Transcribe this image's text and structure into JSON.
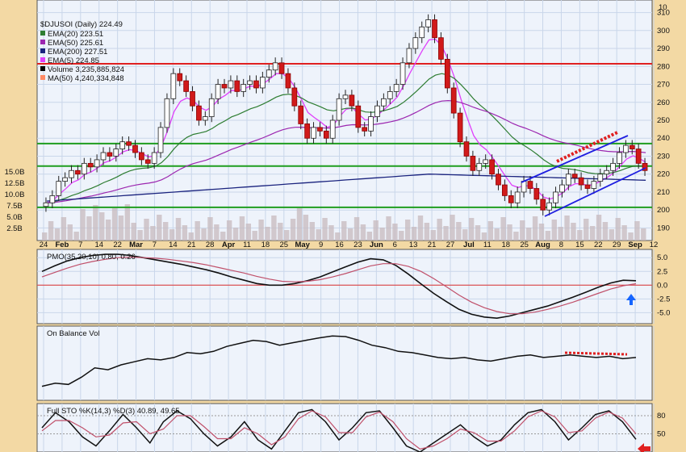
{
  "chart_data": [
    {
      "type": "candlestick",
      "symbol_label": "$DJUSOI (Daily) 224.49",
      "legend": [
        {
          "label": "EMA(20) 223.51",
          "color": "#2e7d32"
        },
        {
          "label": "EMA(50) 225.61",
          "color": "#9c27b0"
        },
        {
          "label": "EMA(200) 227.51",
          "color": "#1a237e"
        },
        {
          "label": "EMA(5) 224.85",
          "color": "#e040fb"
        },
        {
          "label": "Volume 3,235,885,824",
          "color": "#000000"
        },
        {
          "label": "MA(50) 4,240,334,848",
          "color": "#ff8a65"
        }
      ],
      "x_labels": [
        "24",
        "Feb",
        "7",
        "14",
        "22",
        "Mar",
        "7",
        "14",
        "21",
        "28",
        "Apr",
        "11",
        "18",
        "25",
        "May",
        "9",
        "16",
        "23",
        "Jun",
        "6",
        "13",
        "21",
        "27",
        "Jul",
        "11",
        "18",
        "25",
        "Aug",
        "8",
        "15",
        "22",
        "29",
        "Sep",
        "12"
      ],
      "y_ticks": [
        190,
        200,
        210,
        220,
        230,
        240,
        250,
        260,
        270,
        280,
        290,
        300,
        310
      ],
      "y_top_label": "10",
      "ylim": [
        183,
        317
      ],
      "volume_ticks": [
        "2.5B",
        "5.0B",
        "7.5B",
        "10.0B",
        "12.5B",
        "15.0B"
      ],
      "horizontal_levels": [
        {
          "value": 281.5,
          "color": "#e02020"
        },
        {
          "value": 237,
          "color": "#1f9d1f"
        },
        {
          "value": 224.5,
          "color": "#1f9d1f"
        },
        {
          "value": 201.5,
          "color": "#1f9d1f"
        }
      ],
      "close_series": [
        204,
        208,
        216,
        218,
        222,
        220,
        226,
        224,
        228,
        232,
        230,
        234,
        238,
        236,
        232,
        228,
        226,
        232,
        246,
        262,
        276,
        272,
        266,
        258,
        250,
        252,
        262,
        270,
        268,
        272,
        266,
        270,
        272,
        268,
        274,
        278,
        282,
        276,
        268,
        258,
        248,
        240,
        246,
        244,
        240,
        250,
        262,
        264,
        258,
        246,
        244,
        252,
        258,
        262,
        266,
        270,
        282,
        290,
        296,
        302,
        306,
        296,
        284,
        268,
        254,
        238,
        230,
        222,
        226,
        228,
        220,
        214,
        208,
        204,
        210,
        216,
        212,
        206,
        200,
        204,
        210,
        214,
        220,
        218,
        214,
        212,
        216,
        220,
        222,
        226,
        232,
        236,
        234,
        226,
        222
      ]
    },
    {
      "type": "line",
      "title": "PMO(35,20,10) 0.80, 0.26",
      "y_ticks": [
        "5.0",
        "2.5",
        "0.0",
        "-2.5",
        "-5.0"
      ],
      "ylim": [
        -7,
        6.5
      ],
      "series": [
        {
          "name": "PMO",
          "values": [
            2.5,
            3.5,
            4.4,
            5.0,
            5.4,
            5.6,
            5.6,
            5.4,
            5.0,
            4.6,
            4.2,
            3.8,
            3.3,
            2.8,
            2.2,
            1.5,
            0.9,
            0.3,
            0.0,
            0.0,
            0.3,
            0.8,
            1.5,
            2.4,
            3.3,
            4.2,
            4.8,
            4.6,
            3.6,
            2.0,
            0.2,
            -1.5,
            -3.0,
            -4.4,
            -5.3,
            -5.8,
            -6.0,
            -5.6,
            -5.0,
            -4.4,
            -3.8,
            -3.0,
            -2.2,
            -1.3,
            -0.4,
            0.4,
            0.9,
            0.8
          ]
        },
        {
          "name": "Signal",
          "values": [
            1.5,
            2.3,
            3.1,
            3.8,
            4.3,
            4.7,
            5.0,
            5.1,
            5.0,
            4.9,
            4.7,
            4.4,
            4.1,
            3.7,
            3.2,
            2.7,
            2.2,
            1.6,
            1.1,
            0.7,
            0.6,
            0.7,
            1.0,
            1.5,
            2.1,
            2.8,
            3.5,
            3.9,
            3.9,
            3.4,
            2.5,
            1.2,
            -0.3,
            -1.8,
            -3.1,
            -4.1,
            -4.8,
            -5.2,
            -5.2,
            -4.9,
            -4.4,
            -3.8,
            -3.1,
            -2.3,
            -1.5,
            -0.7,
            -0.1,
            0.26
          ]
        }
      ]
    },
    {
      "type": "line",
      "title": "On Balance Vol",
      "series": [
        {
          "name": "OBV",
          "values": [
            0.15,
            0.2,
            0.18,
            0.3,
            0.45,
            0.42,
            0.5,
            0.55,
            0.6,
            0.58,
            0.62,
            0.7,
            0.68,
            0.72,
            0.8,
            0.85,
            0.9,
            0.88,
            0.82,
            0.86,
            0.9,
            0.94,
            0.97,
            0.96,
            0.9,
            0.82,
            0.78,
            0.72,
            0.7,
            0.66,
            0.62,
            0.6,
            0.62,
            0.58,
            0.56,
            0.6,
            0.64,
            0.66,
            0.62,
            0.64,
            0.66,
            0.64,
            0.62,
            0.64,
            0.6,
            0.62
          ]
        }
      ]
    },
    {
      "type": "line",
      "title": "Full STO %K(14,3) %D(3) 40.89, 49.65",
      "y_ticks": [
        "80",
        "50"
      ],
      "ylim": [
        20,
        100
      ],
      "series": [
        {
          "name": "%K",
          "values": [
            60,
            85,
            70,
            45,
            30,
            55,
            82,
            60,
            35,
            70,
            88,
            75,
            50,
            30,
            45,
            70,
            40,
            25,
            55,
            85,
            90,
            70,
            40,
            60,
            85,
            88,
            60,
            30,
            20,
            35,
            50,
            65,
            45,
            30,
            40,
            65,
            85,
            90,
            70,
            40,
            60,
            82,
            88,
            70,
            41
          ]
        },
        {
          "name": "%D",
          "values": [
            55,
            72,
            72,
            60,
            45,
            48,
            68,
            70,
            50,
            58,
            80,
            80,
            62,
            42,
            42,
            60,
            50,
            32,
            45,
            75,
            88,
            78,
            52,
            52,
            78,
            86,
            70,
            42,
            25,
            30,
            42,
            58,
            52,
            38,
            38,
            55,
            78,
            88,
            78,
            52,
            55,
            76,
            86,
            76,
            50
          ]
        }
      ]
    }
  ]
}
